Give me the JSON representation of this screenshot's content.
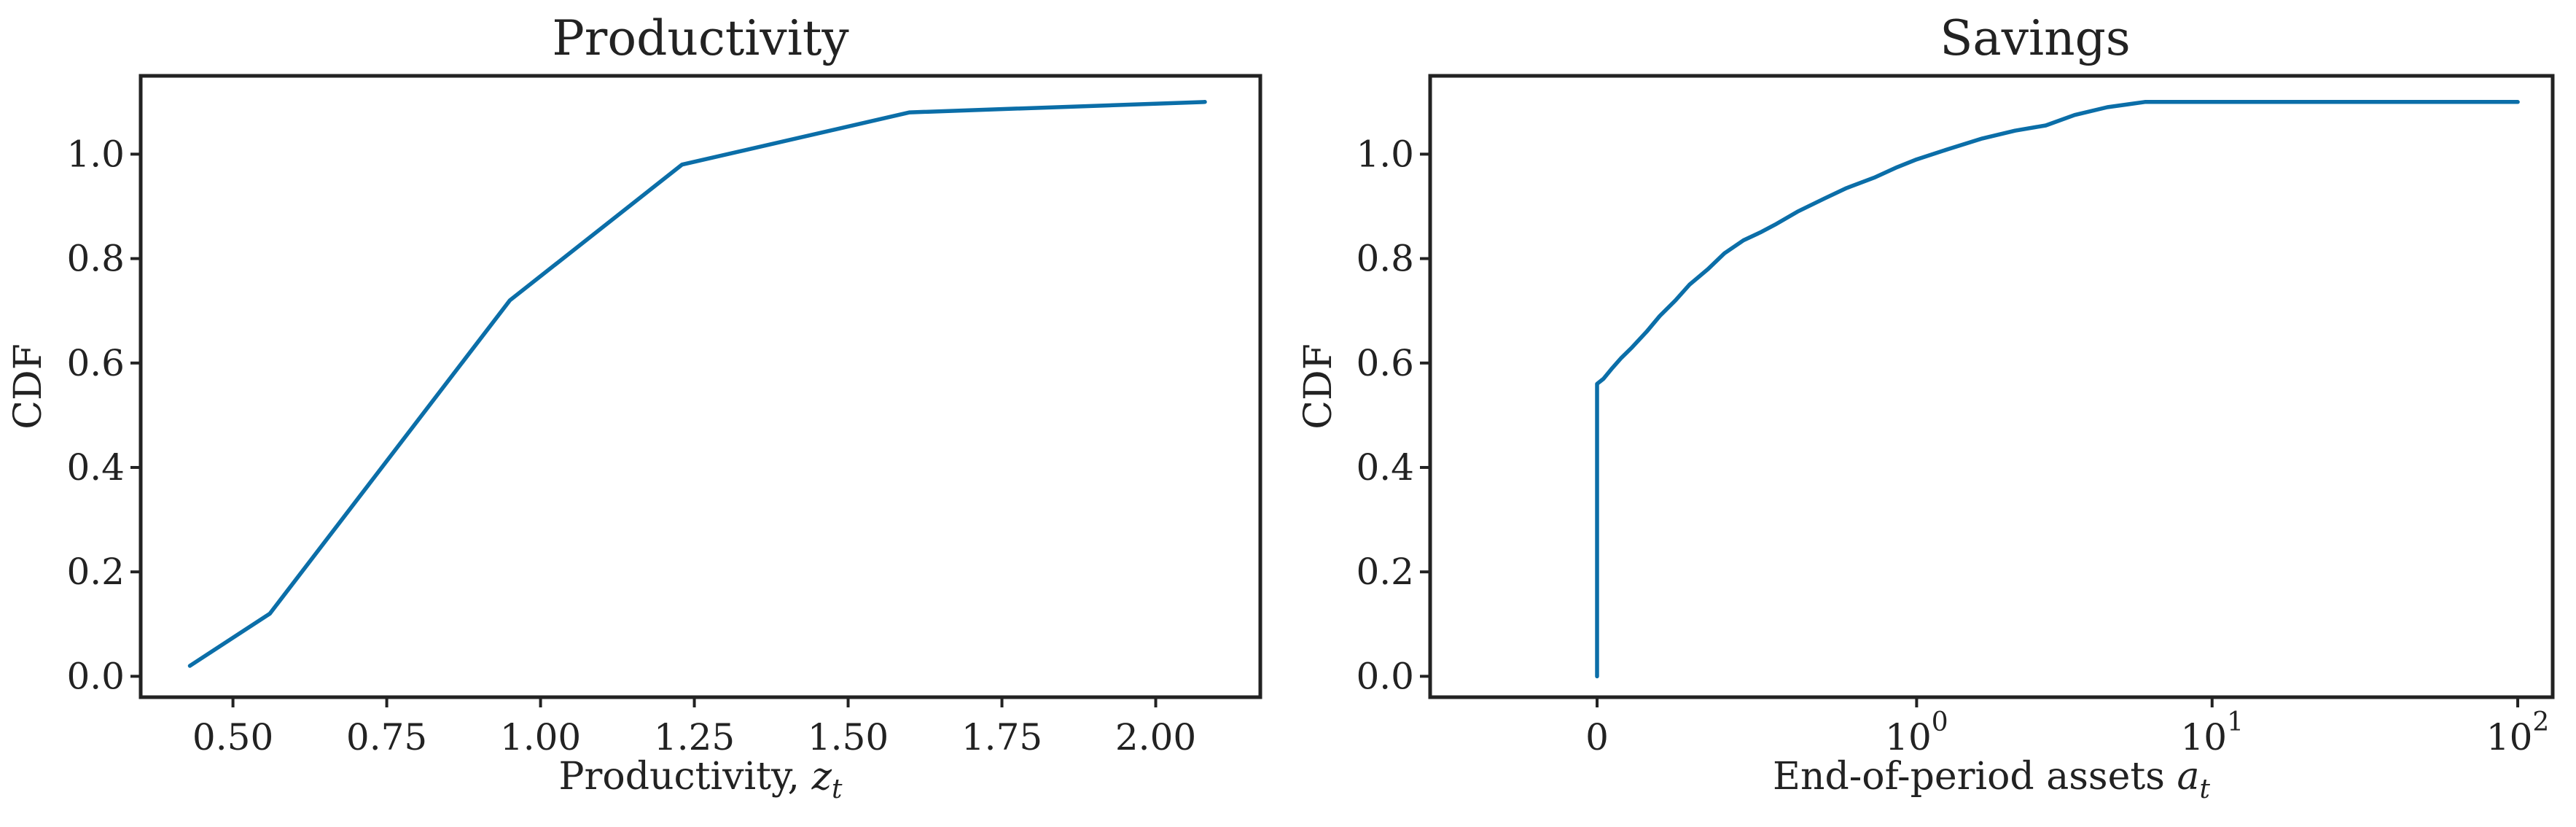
{
  "chart_data": [
    {
      "type": "line",
      "title": "Productivity",
      "xlabel": "Productivity, ",
      "xlabel_var": "z",
      "xlabel_sub": "t",
      "ylabel": "CDF",
      "x_scale": "linear",
      "xlim": [
        0.35,
        2.17
      ],
      "ylim": [
        -0.04,
        1.15
      ],
      "xticks": [
        0.5,
        0.75,
        1.0,
        1.25,
        1.5,
        1.75,
        2.0
      ],
      "xtick_labels": [
        "0.50",
        "0.75",
        "1.00",
        "1.25",
        "1.50",
        "1.75",
        "2.00"
      ],
      "yticks": [
        0.0,
        0.2,
        0.4,
        0.6,
        0.8,
        1.0
      ],
      "ytick_labels": [
        "0.0",
        "0.2",
        "0.4",
        "0.6",
        "0.8",
        "1.0"
      ],
      "grid": false,
      "line_color": "#0b6ea8",
      "series": [
        {
          "x": [
            0.43,
            0.56,
            0.95,
            1.23,
            1.6,
            2.08
          ],
          "y": [
            0.02,
            0.12,
            0.72,
            0.98,
            1.08,
            1.1
          ]
        }
      ]
    },
    {
      "type": "line",
      "title": "Savings",
      "xlabel": "End-of-period assets ",
      "xlabel_var": "a",
      "xlabel_sub": "t",
      "ylabel": "CDF",
      "x_scale": "symlog",
      "xlim": [
        -0.25,
        130
      ],
      "ylim": [
        -0.04,
        1.15
      ],
      "xticks": [
        0,
        1,
        10,
        100
      ],
      "xtick_labels": [
        {
          "base": "0",
          "exp": ""
        },
        {
          "base": "10",
          "exp": "0"
        },
        {
          "base": "10",
          "exp": "1"
        },
        {
          "base": "10",
          "exp": "2"
        }
      ],
      "yticks": [
        0.0,
        0.2,
        0.4,
        0.6,
        0.8,
        1.0
      ],
      "ytick_labels": [
        "0.0",
        "0.2",
        "0.4",
        "0.6",
        "0.8",
        "1.0"
      ],
      "grid": false,
      "line_color": "#0b6ea8",
      "series": [
        {
          "x": [
            0,
            0,
            0.005,
            0.012,
            0.02,
            0.03,
            0.045,
            0.06,
            0.08,
            0.1,
            0.13,
            0.16,
            0.2,
            0.24,
            0.28,
            0.35,
            0.45,
            0.55,
            0.7,
            0.85,
            1.0,
            1.3,
            1.7,
            2.2,
            2.8,
            3.5,
            4.5,
            6.0,
            8.0,
            10.0,
            15.0,
            30.0,
            60.0,
            100.0
          ],
          "y": [
            0.0,
            0.56,
            0.57,
            0.59,
            0.61,
            0.63,
            0.66,
            0.69,
            0.72,
            0.75,
            0.78,
            0.81,
            0.835,
            0.85,
            0.865,
            0.89,
            0.915,
            0.935,
            0.955,
            0.975,
            0.99,
            1.01,
            1.03,
            1.045,
            1.055,
            1.075,
            1.09,
            1.1,
            1.1,
            1.1,
            1.1,
            1.1,
            1.1,
            1.1
          ]
        }
      ]
    }
  ]
}
